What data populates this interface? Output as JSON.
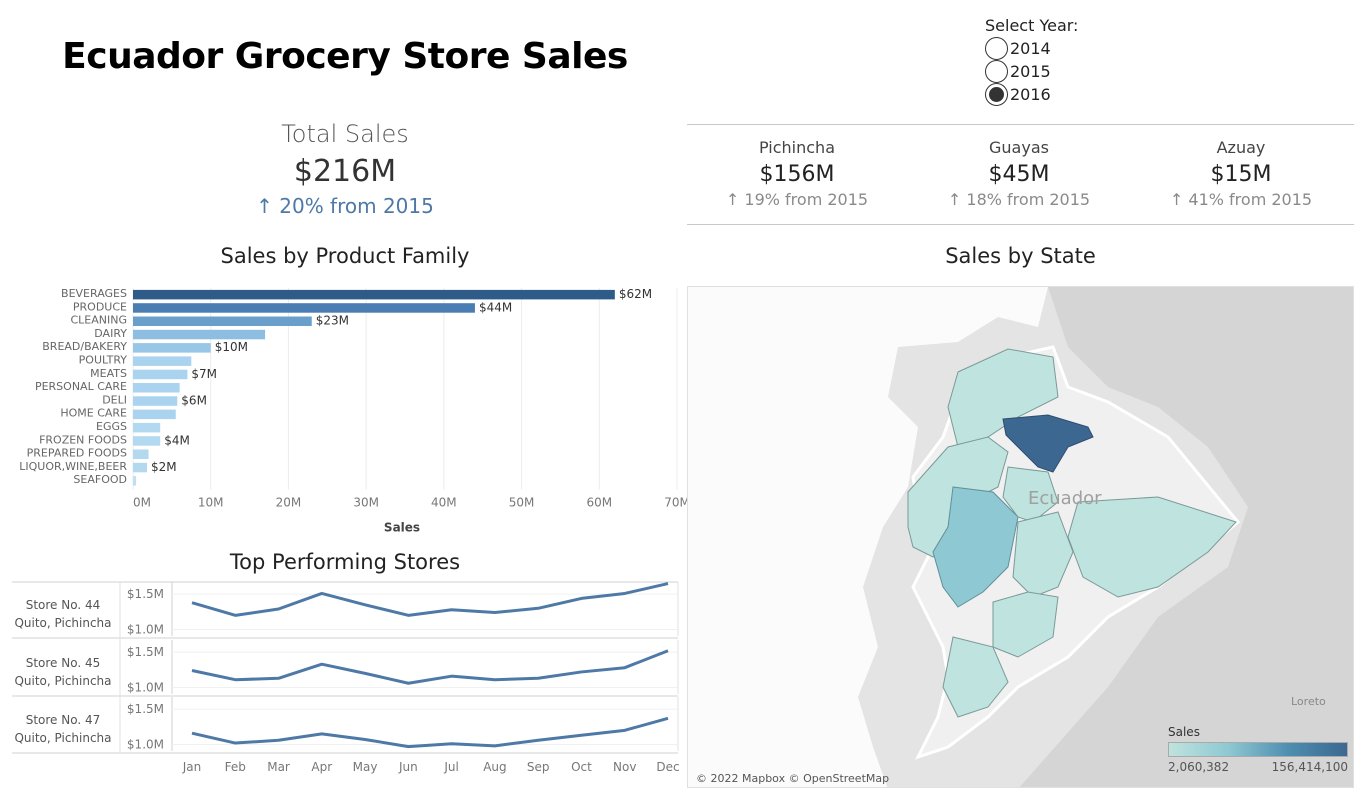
{
  "title": "Ecuador Grocery Store Sales",
  "total": {
    "label": "Total Sales",
    "value": "$216M",
    "change": "↑ 20% from 2015"
  },
  "year_filter": {
    "title": "Select Year:",
    "options": [
      {
        "label": "2014",
        "selected": false
      },
      {
        "label": "2015",
        "selected": false
      },
      {
        "label": "2016",
        "selected": true
      }
    ]
  },
  "kpis": [
    {
      "name": "Pichincha",
      "value": "$156M",
      "change": "↑ 19% from 2015"
    },
    {
      "name": "Guayas",
      "value": "$45M",
      "change": "↑ 18% from 2015"
    },
    {
      "name": "Azuay",
      "value": "$15M",
      "change": "↑ 41% from 2015"
    }
  ],
  "product_family": {
    "title": "Sales by Product Family",
    "chart_data": {
      "type": "bar",
      "orientation": "horizontal",
      "categories": [
        "BEVERAGES",
        "PRODUCE",
        "CLEANING",
        "DAIRY",
        "BREAD/BAKERY",
        "POULTRY",
        "MEATS",
        "PERSONAL CARE",
        "DELI",
        "HOME CARE",
        "EGGS",
        "FROZEN FOODS",
        "PREPARED FOODS",
        "LIQUOR,WINE,BEER",
        "SEAFOOD"
      ],
      "values": [
        62,
        44,
        23,
        17,
        10,
        7.5,
        7,
        6,
        5.7,
        5.5,
        3.5,
        3.5,
        2,
        1.8,
        0.4
      ],
      "data_labels": [
        "$62M",
        "$44M",
        "$23M",
        "",
        "$10M",
        "",
        "$7M",
        "",
        "$6M",
        "",
        "",
        "$4M",
        "",
        "$2M",
        ""
      ],
      "colors": [
        "#2e5b88",
        "#4a7eb2",
        "#6a9fcc",
        "#8dbde0",
        "#97c6e6",
        "#a9d3ee",
        "#a9d3ee",
        "#a9d3ee",
        "#a9d3ee",
        "#a9d3ee",
        "#b2d9f0",
        "#b2d9f0",
        "#b2d9f0",
        "#b2d9f0",
        "#bfe0f3"
      ],
      "xlabel": "Sales",
      "xticks": [
        "0M",
        "10M",
        "20M",
        "30M",
        "40M",
        "50M",
        "60M",
        "70M"
      ],
      "xlim": [
        0,
        70
      ]
    }
  },
  "top_stores": {
    "title": "Top Performing Stores",
    "chart_data": {
      "type": "line",
      "categories": [
        "Jan",
        "Feb",
        "Mar",
        "Apr",
        "May",
        "Jun",
        "Jul",
        "Aug",
        "Sep",
        "Oct",
        "Nov",
        "Dec"
      ],
      "ylim": [
        0.95,
        1.63
      ],
      "yticks": [
        "$1.5M",
        "$1.0M"
      ],
      "color": "#4e79a7",
      "series": [
        {
          "name": "Store No. 44",
          "location": "Quito, Pichincha",
          "values": [
            1.38,
            1.2,
            1.29,
            1.51,
            1.35,
            1.2,
            1.28,
            1.24,
            1.3,
            1.44,
            1.51,
            1.65
          ]
        },
        {
          "name": "Store No. 45",
          "location": "Quito, Pichincha",
          "values": [
            1.24,
            1.11,
            1.13,
            1.33,
            1.2,
            1.06,
            1.16,
            1.11,
            1.13,
            1.22,
            1.28,
            1.52
          ]
        },
        {
          "name": "Store No. 47",
          "location": "Quito, Pichincha",
          "values": [
            1.16,
            1.02,
            1.06,
            1.15,
            1.07,
            0.97,
            1.01,
            0.98,
            1.06,
            1.13,
            1.2,
            1.37
          ]
        }
      ]
    }
  },
  "map": {
    "title": "Sales by State",
    "country_label": "Ecuador",
    "region_label": "Loreto",
    "attribution": "© 2022 Mapbox © OpenStreetMap",
    "legend": {
      "title": "Sales",
      "min": "2,060,382",
      "max": "156,414,100"
    },
    "colors": {
      "low": "#bfe3de",
      "mid": "#8ec8d2",
      "high": "#3c6791"
    }
  }
}
